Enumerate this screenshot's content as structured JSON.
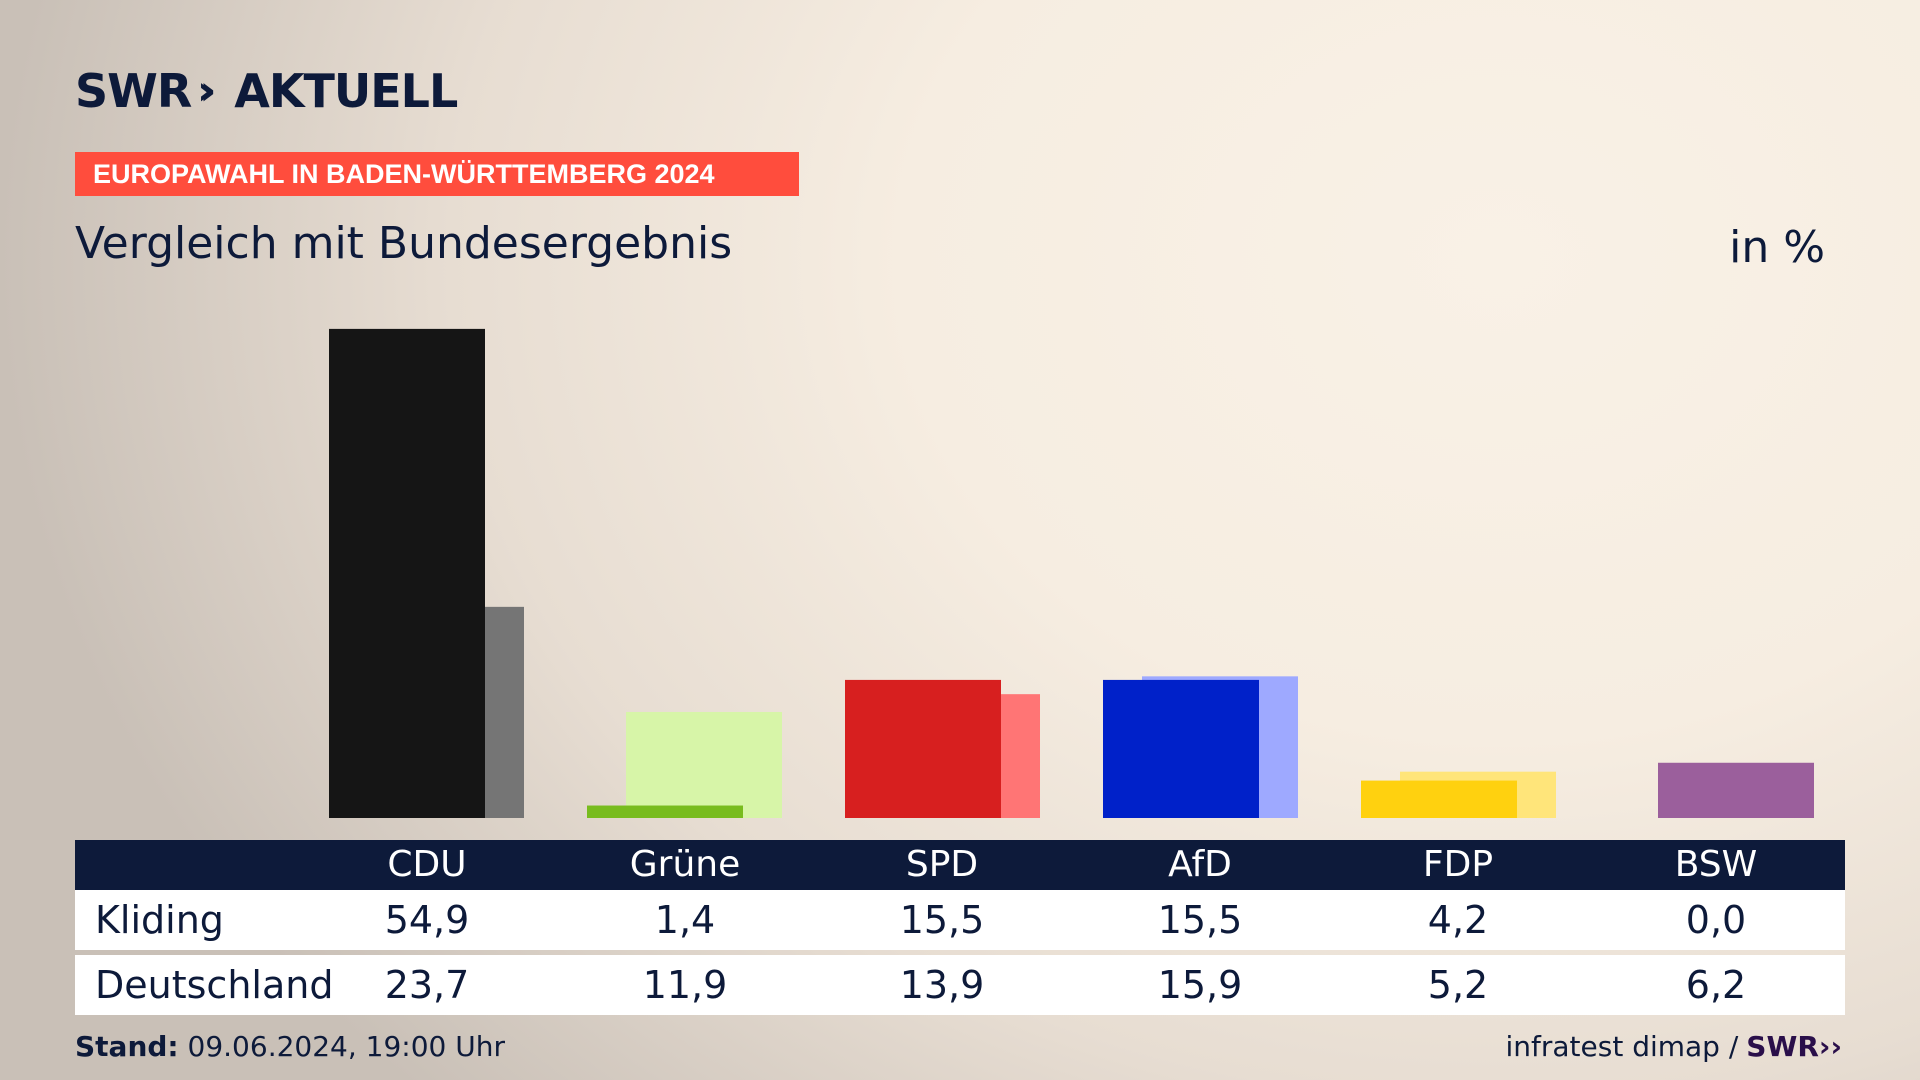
{
  "header": {
    "logo": "SWR",
    "logo_chevrons": "››",
    "logo_suffix": "AKTUELL",
    "banner": "EUROPAWAHL IN BADEN-WÜRTTEMBERG 2024",
    "title": "Vergleich mit Bundesergebnis",
    "unit": "in %"
  },
  "chart_data": {
    "type": "bar",
    "categories": [
      "CDU",
      "Grüne",
      "SPD",
      "AfD",
      "FDP",
      "BSW"
    ],
    "series": [
      {
        "name": "Kliding",
        "values": [
          54.9,
          1.4,
          15.5,
          15.5,
          4.2,
          0.0
        ],
        "colors": [
          "#151515",
          "#78bc1e",
          "#d71f1f",
          "#0021c9",
          "#ffd10f",
          "#9b5f9c"
        ]
      },
      {
        "name": "Deutschland",
        "values": [
          23.7,
          11.9,
          13.9,
          15.9,
          5.2,
          6.2
        ],
        "colors": [
          "#757575",
          "#d7f5a8",
          "#ff7575",
          "#9ea9ff",
          "#ffe57a",
          "#9b5f9c"
        ]
      }
    ],
    "ylim": [
      0,
      55
    ]
  },
  "table": {
    "rows": [
      {
        "label": "Kliding",
        "values": [
          "54,9",
          "1,4",
          "15,5",
          "15,5",
          "4,2",
          "0,0"
        ]
      },
      {
        "label": "Deutschland",
        "values": [
          "23,7",
          "11,9",
          "13,9",
          "15,9",
          "5,2",
          "6,2"
        ]
      }
    ]
  },
  "footer": {
    "stand_label": "Stand:",
    "stand_value": "09.06.2024, 19:00 Uhr",
    "source": "infratest dimap /",
    "source_logo": "SWR››"
  }
}
